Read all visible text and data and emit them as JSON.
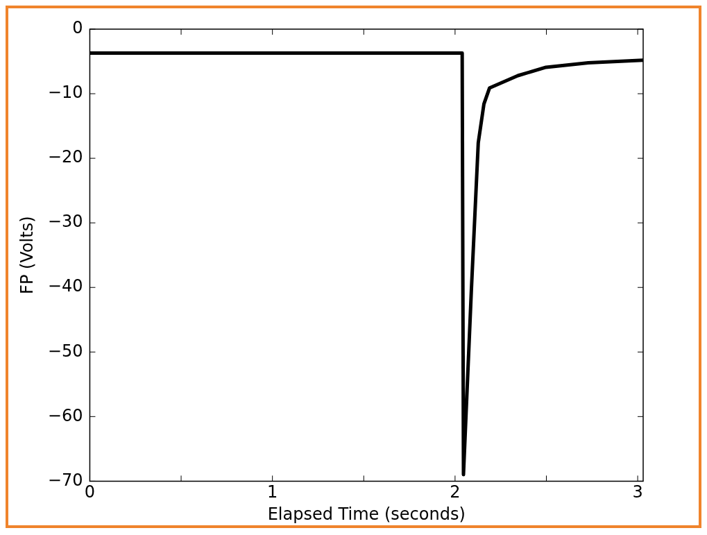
{
  "chart_data": {
    "type": "line",
    "xlabel": "Elapsed Time (seconds)",
    "ylabel": "FP (Volts)",
    "x": [
      0,
      1,
      2.039,
      2.046,
      2.089,
      2.127,
      2.158,
      2.189,
      2.344,
      2.498,
      2.73,
      3.03
    ],
    "series": [
      {
        "color": "#000000",
        "values": [
          -3.7,
          -3.7,
          -3.7,
          -69,
          -40.6,
          -17.6,
          -11.6,
          -9.1,
          -7.2,
          -5.9,
          -5.2,
          -4.8
        ]
      }
    ],
    "xlim": [
      0,
      3.03
    ],
    "xticks": [
      0,
      {
        "value": 0.5,
        "label": null
      },
      1,
      {
        "value": 1.5,
        "label": null
      },
      2,
      {
        "value": 2.5,
        "label": null
      },
      3
    ],
    "ylim": [
      -70,
      0
    ],
    "yticks": [
      -70,
      -60,
      -50,
      -40,
      -30,
      -20,
      -10,
      0
    ],
    "grid": false,
    "legend": false,
    "marker": "none",
    "line_style": "solid"
  }
}
